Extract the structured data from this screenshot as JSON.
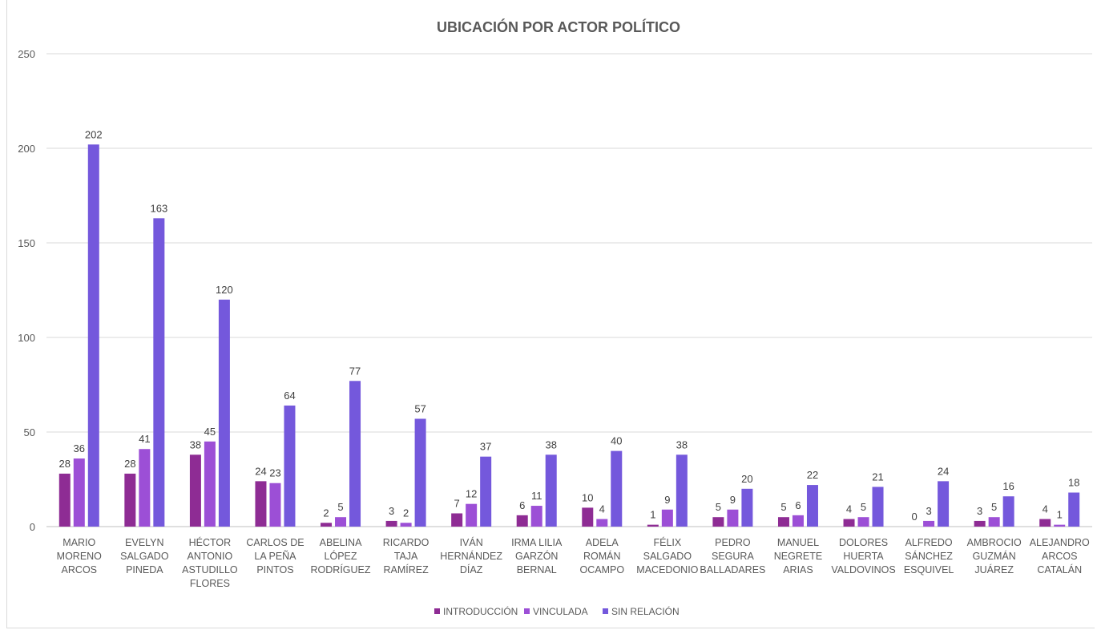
{
  "chart_data": {
    "type": "bar",
    "title": "UBICACIÓN POR ACTOR POLÍTICO",
    "xlabel": "",
    "ylabel": "",
    "ylim": [
      0,
      250
    ],
    "yticks": [
      0,
      50,
      100,
      150,
      200,
      250
    ],
    "grid": true,
    "legend_position": "bottom",
    "categories": [
      [
        "MARIO",
        "MORENO",
        "ARCOS"
      ],
      [
        "EVELYN",
        "SALGADO",
        "PINEDA"
      ],
      [
        "HÉCTOR",
        "ANTONIO",
        "ASTUDILLO",
        "FLORES"
      ],
      [
        "CARLOS DE",
        "LA PEÑA",
        "PINTOS"
      ],
      [
        "ABELINA",
        "LÓPEZ",
        "RODRÍGUEZ"
      ],
      [
        "RICARDO",
        "TAJA",
        "RAMÍREZ"
      ],
      [
        "IVÁN",
        "HERNÁNDEZ",
        "DÍAZ"
      ],
      [
        "IRMA LILIA",
        "GARZÓN",
        "BERNAL"
      ],
      [
        "ADELA",
        "ROMÁN",
        "OCAMPO"
      ],
      [
        "FÉLIX",
        "SALGADO",
        "MACEDONIO"
      ],
      [
        "PEDRO",
        "SEGURA",
        "BALLADARES"
      ],
      [
        "MANUEL",
        "NEGRETE",
        "ARIAS"
      ],
      [
        "DOLORES",
        "HUERTA",
        "VALDOVINOS"
      ],
      [
        "ALFREDO",
        "SÁNCHEZ",
        "ESQUIVEL"
      ],
      [
        "AMBROCIO",
        "GUZMÁN",
        "JUÁREZ"
      ],
      [
        "ALEJANDRO",
        "ARCOS",
        "CATALÁN"
      ]
    ],
    "series": [
      {
        "name": "INTRODUCCIÓN",
        "color": "#8E2C94",
        "values": [
          28,
          28,
          38,
          24,
          2,
          3,
          7,
          6,
          10,
          1,
          5,
          5,
          4,
          0,
          3,
          4
        ]
      },
      {
        "name": "VINCULADA",
        "color": "#9C4FD6",
        "values": [
          36,
          41,
          45,
          23,
          5,
          2,
          12,
          11,
          4,
          9,
          9,
          6,
          5,
          3,
          5,
          1
        ]
      },
      {
        "name": "SIN RELACIÓN",
        "color": "#7458DC",
        "values": [
          202,
          163,
          120,
          64,
          77,
          57,
          37,
          38,
          40,
          38,
          20,
          22,
          21,
          24,
          16,
          18
        ]
      }
    ]
  }
}
